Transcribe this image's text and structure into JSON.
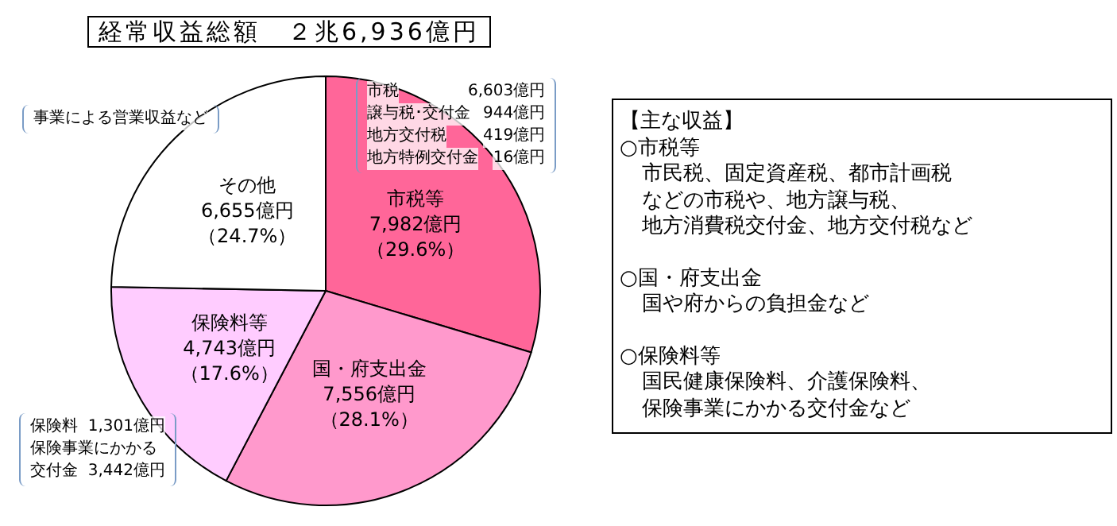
{
  "chart_data": {
    "type": "pie",
    "title": "経常収益総額　２兆6,936億円",
    "categories": [
      "市税等",
      "国・府支出金",
      "保険料等",
      "その他"
    ],
    "values": [
      7982,
      7556,
      4743,
      6655
    ],
    "colors": [
      "#ff6699",
      "#ff99cc",
      "#ffccff",
      "#ffffff"
    ],
    "value_labels": [
      "7,982億円（29.6%）",
      "7,556億円（28.1%）",
      "4,743億円（17.6%）",
      "6,655億円（24.7%）"
    ],
    "legend": false,
    "annotations": [
      "事業による営業収益など",
      "市税\t6,603億円",
      "譲与税･交付金\t944億円",
      "地方交付税\t419億円",
      "地方特例交付金\t16億円",
      "保険料  1,301億円",
      "保険事業にかかる",
      "交付金  3,442億円",
      "【主な収益】",
      "○市税等",
      "市民税、固定資産税、都市計画税",
      "などの市税や、地方譲与税、",
      "地方消費税交付金、地方交付税など",
      "○国・府支出金",
      "国や府からの負担金など",
      "○保険料等",
      "国民健康保険料、介護保険料、",
      "保険事業にかかる交付金など"
    ]
  }
}
